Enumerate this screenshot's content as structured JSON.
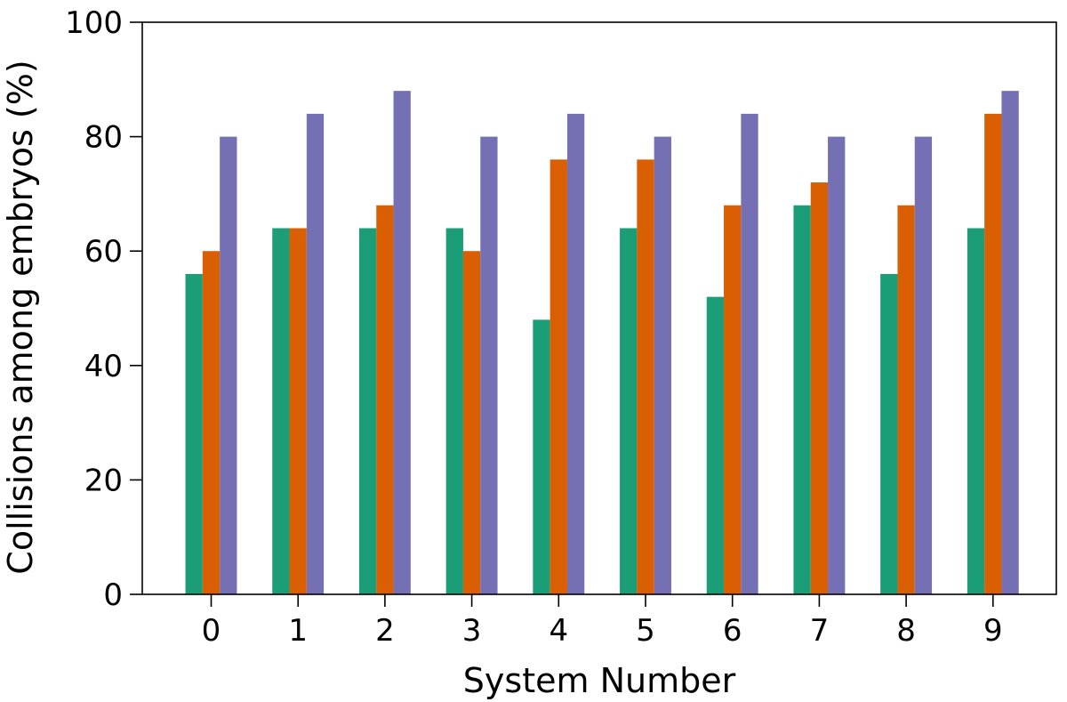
{
  "chart_data": {
    "type": "bar",
    "title": "",
    "xlabel": "System Number",
    "ylabel": "Collisions among embryos (%)",
    "categories": [
      "0",
      "1",
      "2",
      "3",
      "4",
      "5",
      "6",
      "7",
      "8",
      "9"
    ],
    "ylim": [
      0,
      100
    ],
    "yticks": [
      0,
      20,
      40,
      60,
      80,
      100
    ],
    "grid": false,
    "legend": "none",
    "series": [
      {
        "color": "#1b9e77",
        "values": [
          56,
          64,
          64,
          64,
          48,
          64,
          52,
          68,
          56,
          64
        ]
      },
      {
        "color": "#d95f02",
        "values": [
          60,
          64,
          68,
          60,
          76,
          76,
          68,
          72,
          68,
          84
        ]
      },
      {
        "color": "#7570b3",
        "values": [
          80,
          84,
          88,
          80,
          84,
          80,
          84,
          80,
          80,
          88
        ]
      }
    ]
  }
}
